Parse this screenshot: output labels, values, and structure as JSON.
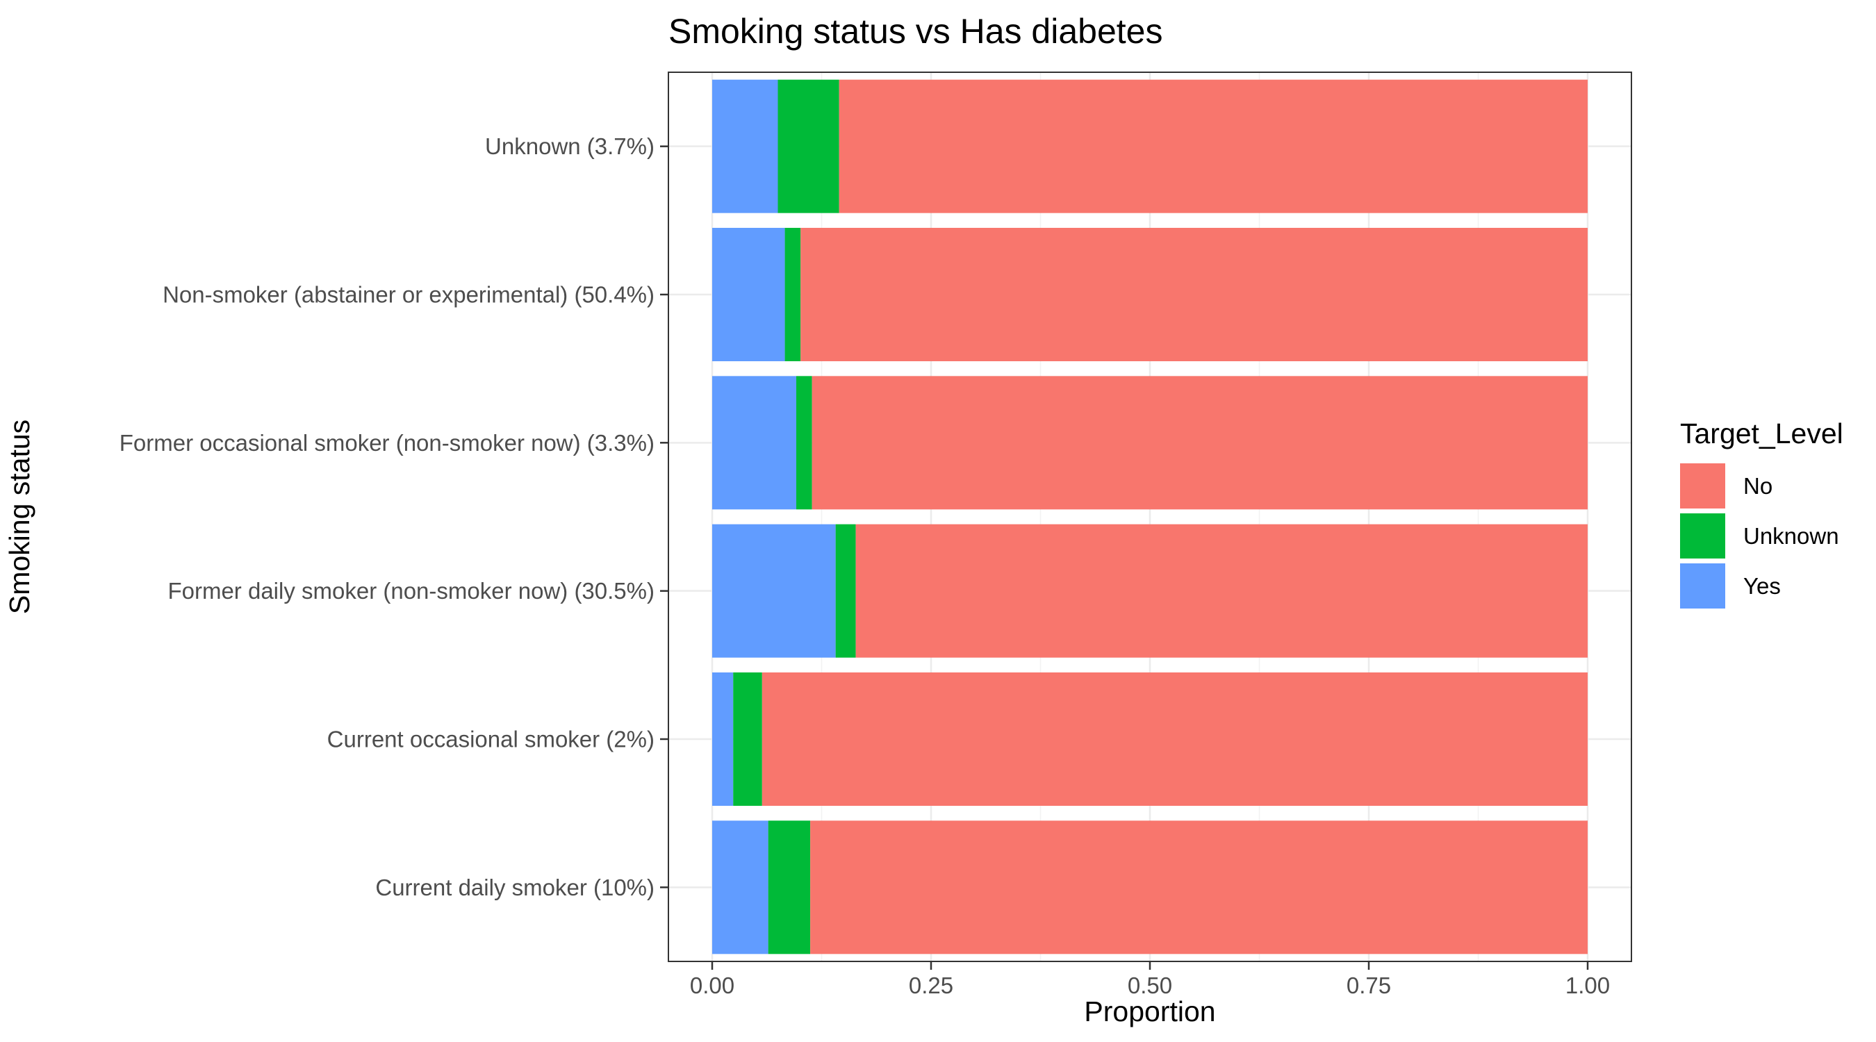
{
  "chart_data": {
    "type": "bar",
    "orientation": "horizontal",
    "stacked": true,
    "title": "Smoking status vs Has diabetes",
    "xlabel": "Proportion",
    "ylabel": "Smoking status",
    "xlim": [
      0,
      1
    ],
    "x_ticks": [
      "0.00",
      "0.25",
      "0.50",
      "0.75",
      "1.00"
    ],
    "x_tick_values": [
      0,
      0.25,
      0.5,
      0.75,
      1
    ],
    "grid": true,
    "legend_position": "right",
    "legend_title": "Target_Level",
    "categories": [
      "Unknown (3.7%)",
      "Non-smoker (abstainer or experimental) (50.4%)",
      "Former occasional smoker (non-smoker now) (3.3%)",
      "Former daily smoker (non-smoker now) (30.5%)",
      "Current occasional smoker (2%)",
      "Current daily smoker (10%)"
    ],
    "series": [
      {
        "name": "Yes",
        "color": "#619CFF",
        "values": [
          0.075,
          0.083,
          0.096,
          0.141,
          0.024,
          0.064
        ]
      },
      {
        "name": "Unknown",
        "color": "#00BA38",
        "values": [
          0.07,
          0.018,
          0.018,
          0.023,
          0.033,
          0.048
        ]
      },
      {
        "name": "No",
        "color": "#F8766D",
        "values": [
          0.855,
          0.899,
          0.886,
          0.836,
          0.943,
          0.888
        ]
      }
    ],
    "legend_order": [
      "No",
      "Unknown",
      "Yes"
    ]
  }
}
